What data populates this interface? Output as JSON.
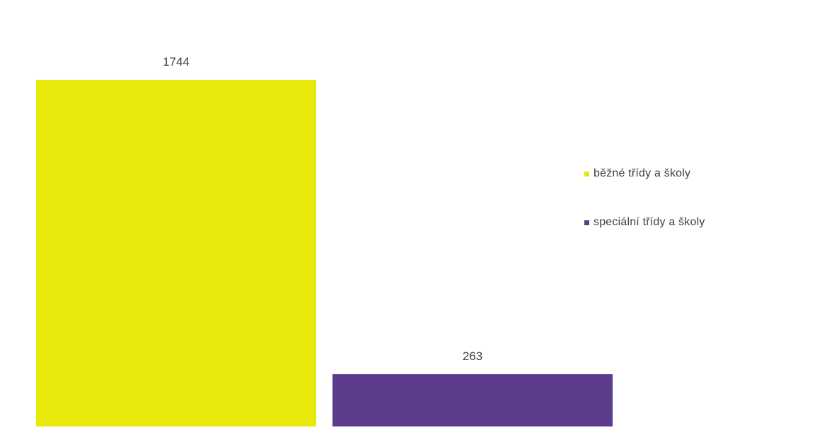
{
  "chart_data": {
    "type": "bar",
    "title": "",
    "categories": [
      "běžné třídy a školy",
      "speciální třídy a školy"
    ],
    "values": [
      1744,
      263
    ],
    "data_labels": [
      "1744",
      "263"
    ],
    "colors": [
      "#e8e80a",
      "#5b3c8c"
    ],
    "ylim": [
      0,
      1744
    ],
    "grid": false,
    "legend_placement": "right",
    "xlabel": "",
    "ylabel": ""
  },
  "legend": {
    "items": [
      {
        "label": "běžné třídy a školy",
        "color": "#e8e80a"
      },
      {
        "label": "speciální třídy a školy",
        "color": "#5b3c8c"
      }
    ]
  }
}
